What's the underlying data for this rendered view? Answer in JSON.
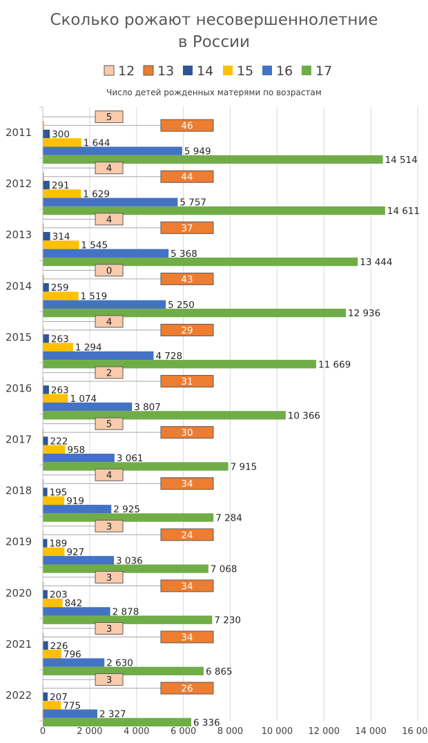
{
  "chart_data": {
    "type": "bar",
    "orientation": "horizontal",
    "title_lines": [
      "Сколько рожают несовершеннолетние",
      "в России"
    ],
    "subtitle": "Число детей рожденных матерями по возрастам",
    "categories": [
      "2011",
      "2012",
      "2013",
      "2014",
      "2015",
      "2016",
      "2017",
      "2018",
      "2019",
      "2020",
      "2021",
      "2022"
    ],
    "series": [
      {
        "name": "12",
        "color": "#F8CBAD",
        "label_style": "callout",
        "values": [
          5,
          4,
          4,
          0,
          4,
          2,
          5,
          4,
          3,
          3,
          3,
          3
        ]
      },
      {
        "name": "13",
        "color": "#ED7D31",
        "label_style": "callout",
        "values": [
          46,
          44,
          37,
          43,
          29,
          31,
          30,
          34,
          24,
          34,
          34,
          26
        ]
      },
      {
        "name": "14",
        "color": "#2F5597",
        "label_style": "plain",
        "values": [
          300,
          291,
          314,
          259,
          263,
          263,
          222,
          195,
          189,
          203,
          226,
          207
        ]
      },
      {
        "name": "15",
        "color": "#FFC000",
        "label_style": "plain",
        "values": [
          1644,
          1629,
          1545,
          1519,
          1294,
          1074,
          958,
          919,
          927,
          842,
          796,
          775
        ]
      },
      {
        "name": "16",
        "color": "#4472C4",
        "label_style": "plain",
        "values": [
          5949,
          5757,
          5368,
          5250,
          4728,
          3807,
          3061,
          2925,
          3036,
          2878,
          2630,
          2327
        ]
      },
      {
        "name": "17",
        "color": "#70AD47",
        "label_style": "plain",
        "values": [
          14514,
          14611,
          13444,
          12936,
          11669,
          10366,
          7915,
          7284,
          7068,
          7230,
          6865,
          6336
        ]
      }
    ],
    "value_labels": [
      [
        "5",
        "46",
        "300",
        "1 644",
        "5 949",
        "14 514"
      ],
      [
        "4",
        "44",
        "291",
        "1 629",
        "5 757",
        "14 611"
      ],
      [
        "4",
        "37",
        "314",
        "1 545",
        "5 368",
        "13 444"
      ],
      [
        "0",
        "43",
        "259",
        "1 519",
        "5 250",
        "12 936"
      ],
      [
        "4",
        "29",
        "263",
        "1 294",
        "4 728",
        "11 669"
      ],
      [
        "2",
        "31",
        "263",
        "1 074",
        "3 807",
        "10 366"
      ],
      [
        "5",
        "30",
        "222",
        "958",
        "3 061",
        "7 915"
      ],
      [
        "4",
        "34",
        "195",
        "919",
        "2 925",
        "7 284"
      ],
      [
        "3",
        "24",
        "189",
        "927",
        "3 036",
        "7 068"
      ],
      [
        "3",
        "34",
        "203",
        "842",
        "2 878",
        "7 230"
      ],
      [
        "3",
        "34",
        "226",
        "796",
        "2 630",
        "6 865"
      ],
      [
        "3",
        "26",
        "207",
        "775",
        "2 327",
        "6 336"
      ]
    ],
    "xlim": [
      0,
      16000
    ],
    "x_ticks": [
      0,
      2000,
      4000,
      6000,
      8000,
      10000,
      12000,
      14000,
      16000
    ],
    "x_tick_labels": [
      "0",
      "2 000",
      "4 000",
      "6 000",
      "8 000",
      "10 000",
      "12 000",
      "14 000",
      "16 000"
    ],
    "grid": "vertical",
    "legend_position": "top"
  }
}
